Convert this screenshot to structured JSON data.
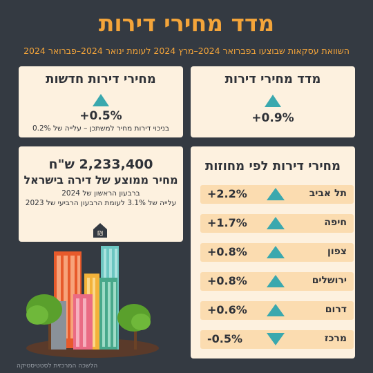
{
  "header": {
    "title": "מדד מחירי דירות",
    "subtitle": "השוואת עסקאות שבוצעו בפברואר 2024–מרץ 2024 לעומת ינואר 2024–פברואר 2024"
  },
  "index_card": {
    "title": "מדד מחירי דירות",
    "direction": "up",
    "value": "+0.9%"
  },
  "new_apartments_card": {
    "title": "מחירי דירות חדשות",
    "direction": "up",
    "value": "+0.5%",
    "note": "בניכוי דירות מחיר למשתכן – עלייה של 0.2%"
  },
  "avg_price_card": {
    "price": "2,233,400 ש\"ח",
    "label": "מחיר ממוצע של דירה בישראל",
    "period": "ברבעון הראשון של 2024",
    "change_note": "עלייה של 3.1% לעומת הרבעון הרביעי של 2023",
    "icon": "house-shekel-icon"
  },
  "districts_card": {
    "title": "מחירי דירות לפי מחוזות",
    "rows": [
      {
        "name": "תל אביב",
        "value": "+2.2%",
        "direction": "up"
      },
      {
        "name": "חיפה",
        "value": "+1.7%",
        "direction": "up"
      },
      {
        "name": "צפון",
        "value": "+0.8%",
        "direction": "up"
      },
      {
        "name": "ירושלים",
        "value": "+0.8%",
        "direction": "up"
      },
      {
        "name": "דרום",
        "value": "+0.6%",
        "direction": "up"
      },
      {
        "name": "מרכז",
        "value": "-0.5%",
        "direction": "down"
      }
    ]
  },
  "footer": {
    "source": "הלשכה המרכזית לסטטיסטיקה"
  },
  "colors": {
    "background": "#343a42",
    "accent": "#f3a43a",
    "card": "#fdf1df",
    "row": "#fbdcb0",
    "arrow": "#3aa8ae"
  }
}
